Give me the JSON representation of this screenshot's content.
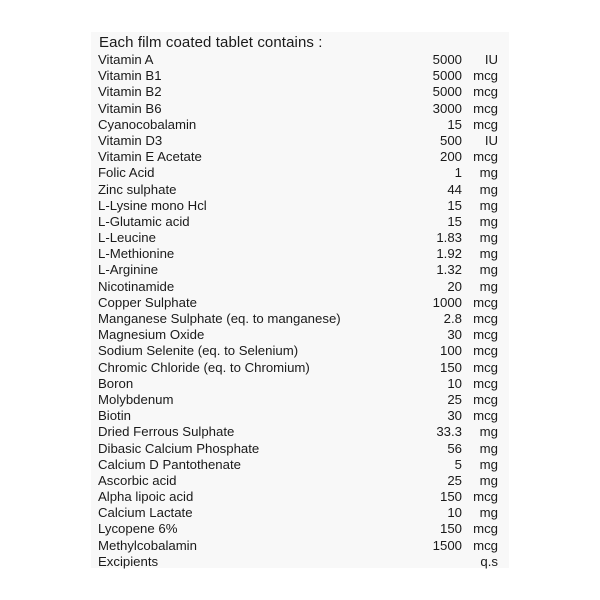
{
  "title": "Each film coated tablet contains :",
  "ingredients": [
    {
      "name": "Vitamin A",
      "amount": "5000",
      "unit": "IU"
    },
    {
      "name": "Vitamin B1",
      "amount": "5000",
      "unit": "mcg"
    },
    {
      "name": "Vitamin B2",
      "amount": "5000",
      "unit": "mcg"
    },
    {
      "name": "Vitamin B6",
      "amount": "3000",
      "unit": "mcg"
    },
    {
      "name": "Cyanocobalamin",
      "amount": "15",
      "unit": "mcg"
    },
    {
      "name": "Vitamin D3",
      "amount": "500",
      "unit": "IU"
    },
    {
      "name": "Vitamin E Acetate",
      "amount": "200",
      "unit": "mcg"
    },
    {
      "name": "Folic Acid",
      "amount": "1",
      "unit": "mg"
    },
    {
      "name": "Zinc sulphate",
      "amount": "44",
      "unit": "mg"
    },
    {
      "name": "L-Lysine mono Hcl",
      "amount": "15",
      "unit": "mg"
    },
    {
      "name": "L-Glutamic acid",
      "amount": "15",
      "unit": "mg"
    },
    {
      "name": "L-Leucine",
      "amount": "1.83",
      "unit": "mg"
    },
    {
      "name": "L-Methionine",
      "amount": "1.92",
      "unit": "mg"
    },
    {
      "name": "L-Arginine",
      "amount": "1.32",
      "unit": "mg"
    },
    {
      "name": "Nicotinamide",
      "amount": "20",
      "unit": "mg"
    },
    {
      "name": "Copper Sulphate",
      "amount": "1000",
      "unit": "mcg"
    },
    {
      "name": "Manganese Sulphate (eq. to manganese)",
      "amount": "2.8",
      "unit": "mcg"
    },
    {
      "name": "Magnesium Oxide",
      "amount": "30",
      "unit": "mcg"
    },
    {
      "name": "Sodium Selenite (eq. to Selenium)",
      "amount": "100",
      "unit": "mcg"
    },
    {
      "name": "Chromic Chloride (eq. to Chromium)",
      "amount": "150",
      "unit": "mcg"
    },
    {
      "name": "Boron",
      "amount": "10",
      "unit": "mcg"
    },
    {
      "name": "Molybdenum",
      "amount": "25",
      "unit": "mcg"
    },
    {
      "name": "Biotin",
      "amount": "30",
      "unit": "mcg"
    },
    {
      "name": "Dried Ferrous Sulphate",
      "amount": "33.3",
      "unit": "mg"
    },
    {
      "name": "Dibasic Calcium Phosphate",
      "amount": "56",
      "unit": "mg"
    },
    {
      "name": "Calcium D Pantothenate",
      "amount": "5",
      "unit": "mg"
    },
    {
      "name": "Ascorbic acid",
      "amount": "25",
      "unit": "mg"
    },
    {
      "name": "Alpha lipoic acid",
      "amount": "150",
      "unit": "mcg"
    },
    {
      "name": "Calcium Lactate",
      "amount": "10",
      "unit": "mg"
    },
    {
      "name": "Lycopene 6%",
      "amount": "150",
      "unit": "mcg"
    },
    {
      "name": "Methylcobalamin",
      "amount": "1500",
      "unit": "mcg"
    },
    {
      "name": "Excipients",
      "amount": "",
      "unit": "q.s"
    }
  ]
}
